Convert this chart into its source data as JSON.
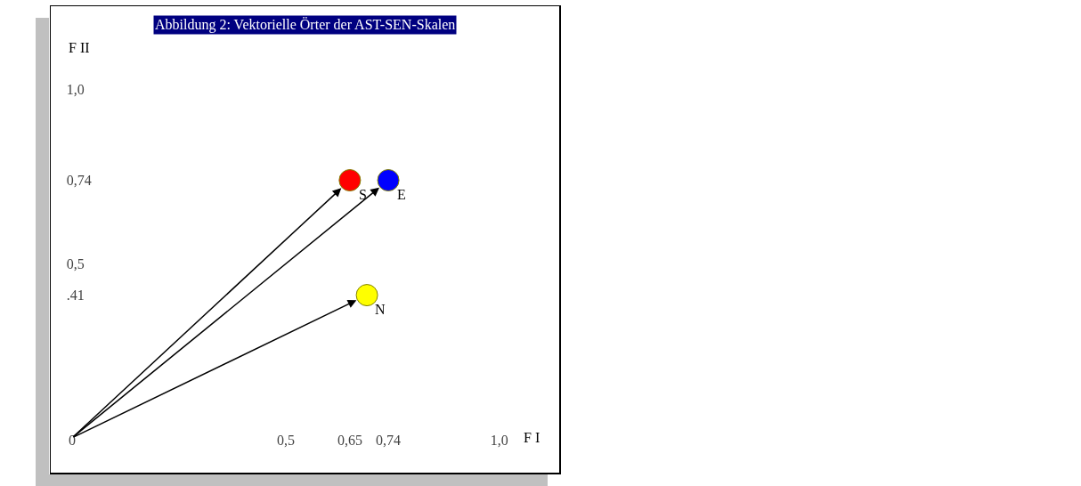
{
  "chart_data": {
    "type": "scatter",
    "title": "Abbildung 2: Vektorielle Örter der AST-SEN-Skalen",
    "xlabel": "F I",
    "ylabel": "F II",
    "x": [
      0.65,
      0.74,
      0.69
    ],
    "values": [
      0.74,
      0.74,
      0.41
    ],
    "colors": [
      "#ff0000",
      "#0000ff",
      "#ffff00"
    ],
    "xlim": [
      -0.05,
      1.14
    ],
    "ylim": [
      -0.1,
      1.24
    ],
    "xticks": [
      {
        "value": 0,
        "label": "0"
      },
      {
        "value": 0.5,
        "label": "0,5"
      },
      {
        "value": 0.65,
        "label": "0,65"
      },
      {
        "value": 0.74,
        "label": "0,74"
      },
      {
        "value": 1,
        "label": "1,0"
      }
    ],
    "yticks": [
      {
        "value": 0.41,
        "label": ".41"
      },
      {
        "value": 0.5,
        "label": "0,5"
      },
      {
        "value": 0.74,
        "label": "0,74"
      },
      {
        "value": 1,
        "label": "1,0"
      }
    ],
    "annotations": [
      {
        "text": "S",
        "x": 0.65,
        "y": 0.74
      },
      {
        "text": "E",
        "x": 0.74,
        "y": 0.74
      },
      {
        "text": "N",
        "x": 0.69,
        "y": 0.41
      }
    ],
    "marker": "circle",
    "grid": false
  }
}
